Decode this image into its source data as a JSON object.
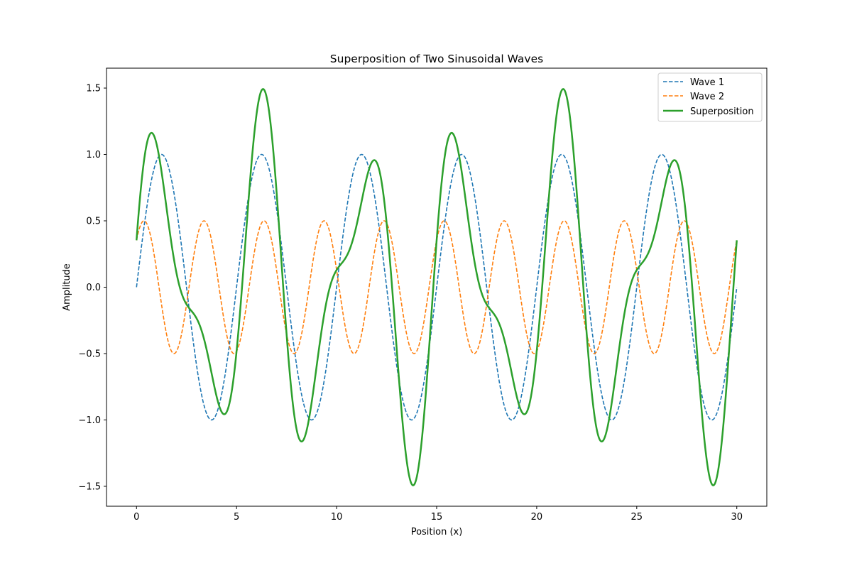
{
  "chart_data": {
    "type": "line",
    "title": "Superposition of Two Sinusoidal Waves",
    "xlabel": "Position (x)",
    "ylabel": "Amplitude",
    "xlim": [
      -1.5,
      31.5
    ],
    "ylim": [
      -1.65,
      1.65
    ],
    "xticks": [
      0,
      5,
      10,
      15,
      20,
      25,
      30
    ],
    "xtick_labels": [
      "0",
      "5",
      "10",
      "15",
      "20",
      "25",
      "30"
    ],
    "yticks": [
      -1.5,
      -1.0,
      -0.5,
      0.0,
      0.5,
      1.0,
      1.5
    ],
    "ytick_labels": [
      "−1.5",
      "−1.0",
      "−0.5",
      "0.0",
      "0.5",
      "1.0",
      "1.5"
    ],
    "grid": false,
    "legend_position": "top-right",
    "x_range": [
      0,
      30
    ],
    "series": [
      {
        "name": "Wave 1",
        "color": "#1f77b4",
        "style": "dashed",
        "amplitude": 1.0,
        "wavelength": 5,
        "phase": 0
      },
      {
        "name": "Wave 2",
        "color": "#ff7f0e",
        "style": "dashed",
        "amplitude": 0.5,
        "wavelength": 3,
        "phase": 0.785398
      },
      {
        "name": "Superposition",
        "color": "#2ca02c",
        "style": "solid",
        "sum_of": [
          "Wave 1",
          "Wave 2"
        ]
      }
    ]
  }
}
